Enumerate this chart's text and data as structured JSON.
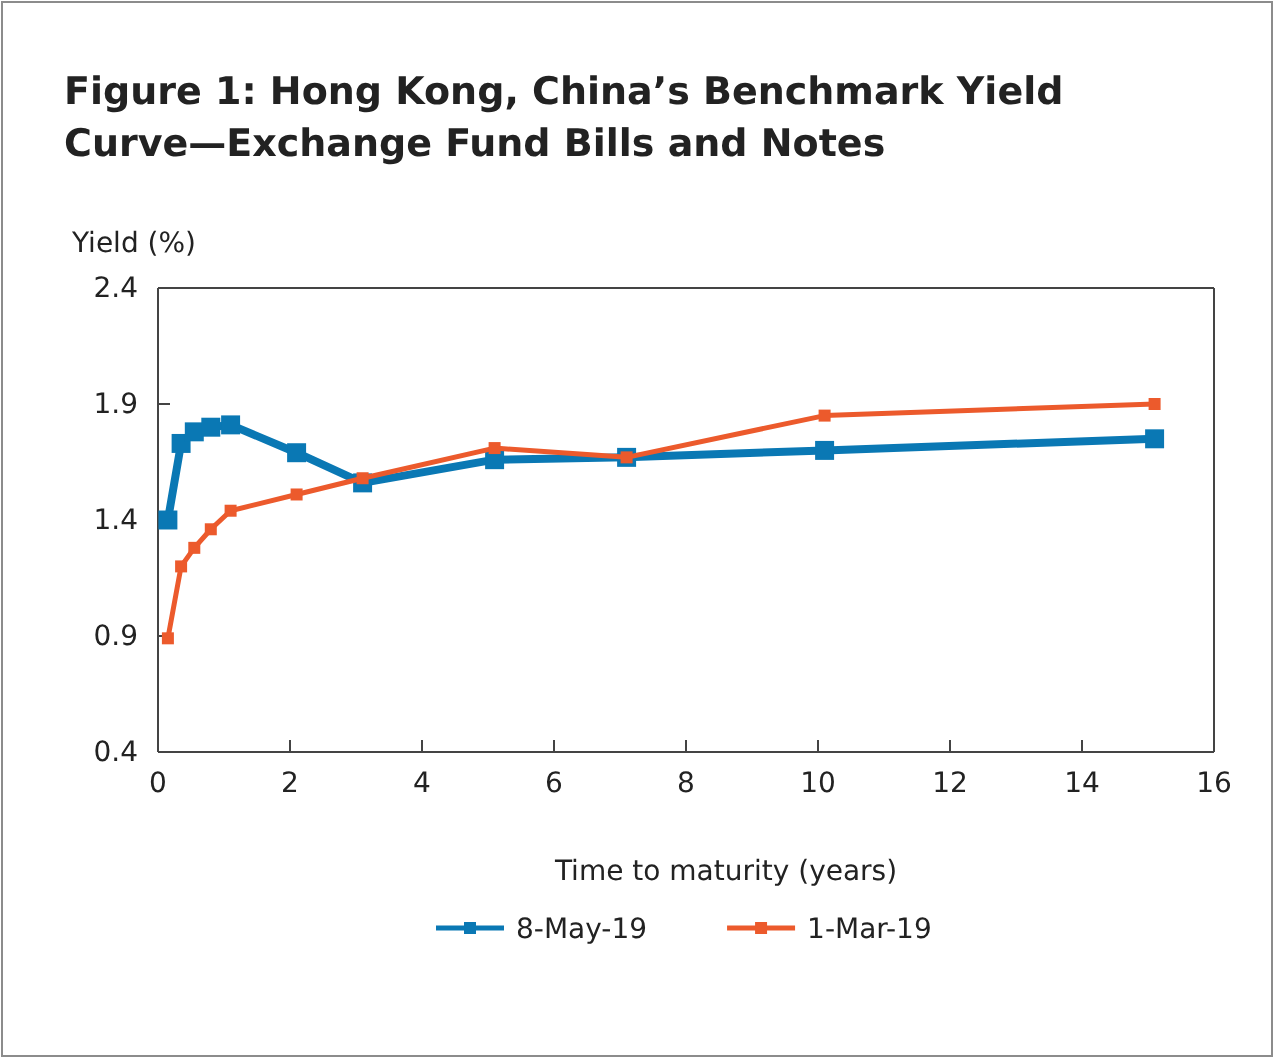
{
  "chart_data": {
    "type": "line",
    "title": "Figure 1: Hong Kong, China’s Benchmark Yield Curve—Exchange Fund Bills and Notes",
    "ylabel": "Yield (%)",
    "xlabel": "Time to maturity (years)",
    "x": [
      0.15,
      0.35,
      0.55,
      0.8,
      1.1,
      2.1,
      3.1,
      5.1,
      7.1,
      10.1,
      15.1
    ],
    "series": [
      {
        "name": "8-May-19",
        "color": "#0a78b4",
        "values": [
          1.4,
          1.73,
          1.78,
          1.8,
          1.81,
          1.69,
          1.56,
          1.66,
          1.67,
          1.7,
          1.75
        ]
      },
      {
        "name": "1-Mar-19",
        "color": "#ec5a2c",
        "values": [
          0.89,
          1.2,
          1.28,
          1.36,
          1.44,
          1.51,
          1.58,
          1.71,
          1.67,
          1.85,
          1.9
        ]
      }
    ],
    "xlim": [
      0,
      16
    ],
    "xticks": [
      0,
      2,
      4,
      6,
      8,
      10,
      12,
      14,
      16
    ],
    "ylim": [
      0.4,
      2.4
    ],
    "yticks": [
      0.4,
      0.9,
      1.4,
      1.9,
      2.4
    ],
    "marker": "square",
    "line_style": "solid",
    "grid": false,
    "legend": "bottom"
  }
}
